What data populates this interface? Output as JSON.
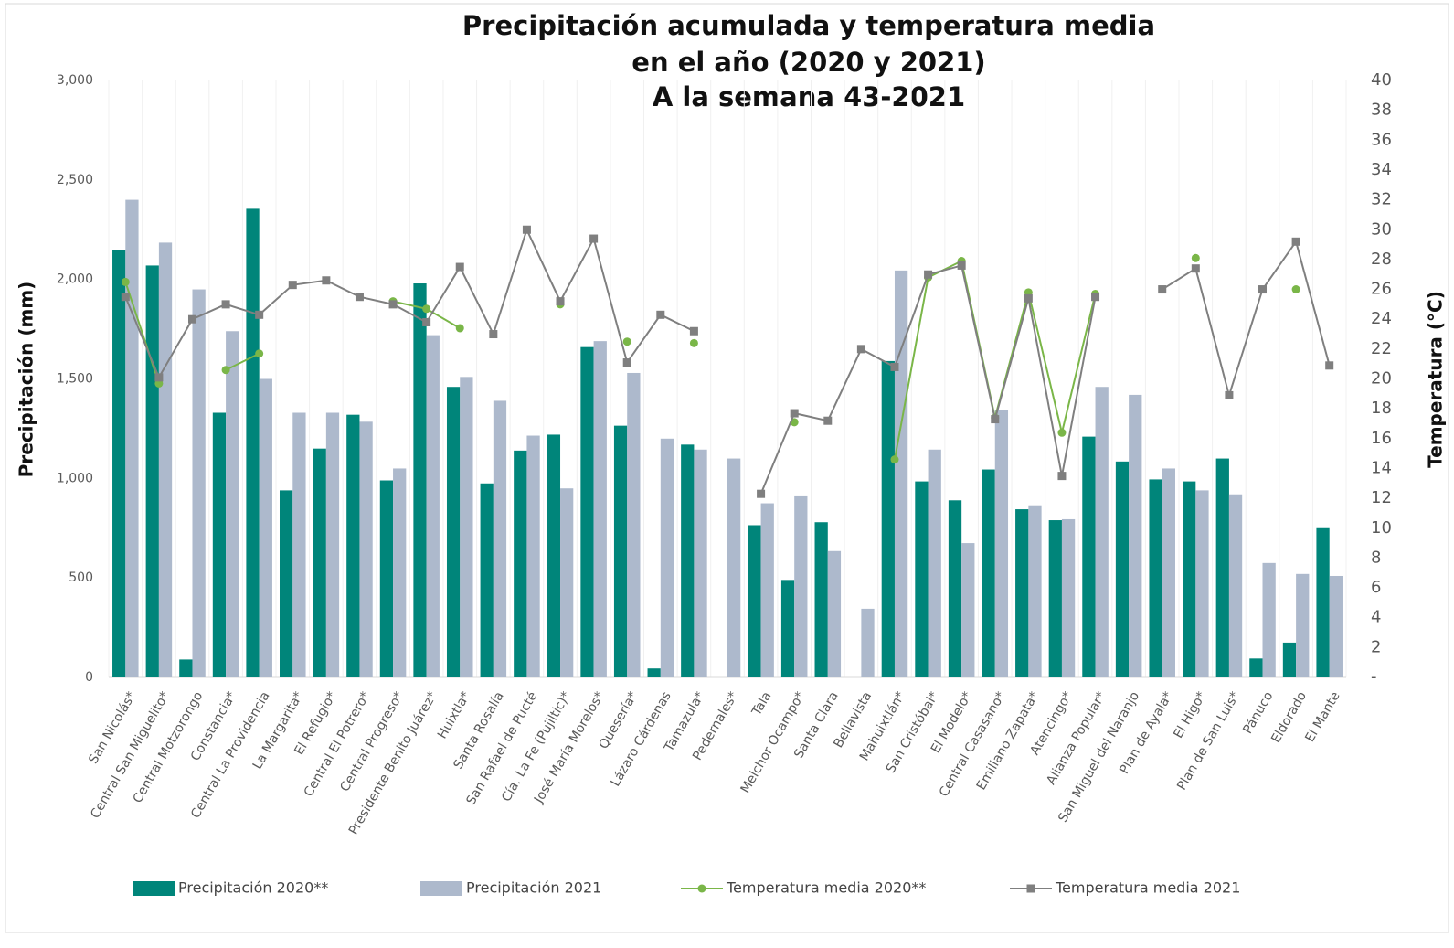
{
  "chart_data": {
    "type": "bar",
    "title": [
      "Precipitación acumulada y temperatura media",
      "en el año (2020 y 2021)",
      "A la semana 43-2021"
    ],
    "y_label": "Precipitación (mm)",
    "y2_label": "Temperatura (°C)",
    "categories": [
      "San Nicolás*",
      "Central San Miguelito*",
      "Central Motzorongo",
      "Constancia*",
      "Central La Providencia",
      "La Margarita*",
      "El Refugio*",
      "Central El Potrero*",
      "Central Progreso*",
      "Presidente Benito Juárez*",
      "Huixtla*",
      "Santa Rosalía",
      "San Rafael de Pucté",
      "Cía. La Fe (Pujiltic)*",
      "José María Morelos*",
      "Quesería*",
      "Lázaro Cárdenas",
      "Tamazula*",
      "Pedernales*",
      "Tala",
      "Melchor Ocampo*",
      "Santa Clara",
      "Bellavista",
      "Mahuixtlán*",
      "San Cristóbal*",
      "El Modelo*",
      "Central Casasano*",
      "Emiliano Zapata*",
      "Atencingo*",
      "Alianza Popular*",
      "San Miguel del Naranjo",
      "Plan de Ayala*",
      "El Higo*",
      "Plan de San Luis*",
      "Pánuco",
      "Eldorado",
      "El Mante"
    ],
    "series": [
      {
        "name": "Precipitación 2020**",
        "type": "bar",
        "color": "#00857a",
        "values": [
          2150,
          2070,
          90,
          1330,
          2355,
          940,
          1150,
          1320,
          990,
          1980,
          1460,
          975,
          1140,
          1220,
          1660,
          1265,
          45,
          1170,
          null,
          765,
          490,
          780,
          null,
          1590,
          985,
          890,
          1045,
          845,
          790,
          1210,
          1085,
          995,
          985,
          1100,
          95,
          175,
          750
        ]
      },
      {
        "name": "Precipitación 2021",
        "type": "bar",
        "color": "#adb9cc",
        "values": [
          2400,
          2185,
          1950,
          1740,
          1500,
          1330,
          1330,
          1285,
          1050,
          1720,
          1510,
          1390,
          1215,
          950,
          1690,
          1530,
          1200,
          1145,
          1100,
          875,
          910,
          635,
          345,
          2045,
          1145,
          675,
          1345,
          865,
          795,
          1460,
          1420,
          1050,
          940,
          920,
          575,
          520,
          510
        ]
      },
      {
        "name": "Temperatura media 2020**",
        "type": "line",
        "axis": "y2",
        "marker": "circle",
        "color": "#7ab648",
        "values": [
          26.5,
          19.7,
          null,
          20.6,
          21.7,
          null,
          null,
          null,
          25.2,
          24.7,
          23.4,
          null,
          null,
          25.0,
          null,
          22.5,
          null,
          22.4,
          null,
          null,
          17.1,
          null,
          null,
          14.6,
          26.8,
          27.9,
          17.4,
          25.8,
          16.4,
          25.7,
          null,
          null,
          28.1,
          null,
          null,
          26.0,
          null
        ]
      },
      {
        "name": "Temperatura media 2021",
        "type": "line",
        "axis": "y2",
        "marker": "square",
        "color": "#7f7f7f",
        "values": [
          25.5,
          20.1,
          24.0,
          25.0,
          24.3,
          26.3,
          26.6,
          25.5,
          25.0,
          23.8,
          27.5,
          23.0,
          30.0,
          25.2,
          29.4,
          21.1,
          24.3,
          23.2,
          null,
          12.3,
          17.7,
          17.2,
          22.0,
          20.8,
          27.0,
          27.6,
          17.3,
          25.4,
          13.5,
          25.5,
          null,
          26.0,
          27.4,
          18.9,
          26.0,
          29.2,
          20.9
        ]
      }
    ],
    "ylim": [
      0,
      3000
    ],
    "yticks": [
      0,
      500,
      {
        "value": 1000,
        "label": "1,000"
      },
      {
        "value": 1500,
        "label": "1,500"
      },
      {
        "value": 2000,
        "label": "2,000"
      },
      {
        "value": 2500,
        "label": "2,500"
      },
      {
        "value": 3000,
        "label": "3,000"
      }
    ],
    "y2lim": [
      0,
      40
    ],
    "y2ticks": [
      {
        "value": 0,
        "label": "-"
      },
      2,
      4,
      6,
      8,
      10,
      12,
      14,
      16,
      18,
      20,
      22,
      24,
      26,
      28,
      30,
      32,
      34,
      36,
      38,
      40
    ],
    "grid": false,
    "legend": "bottom"
  }
}
